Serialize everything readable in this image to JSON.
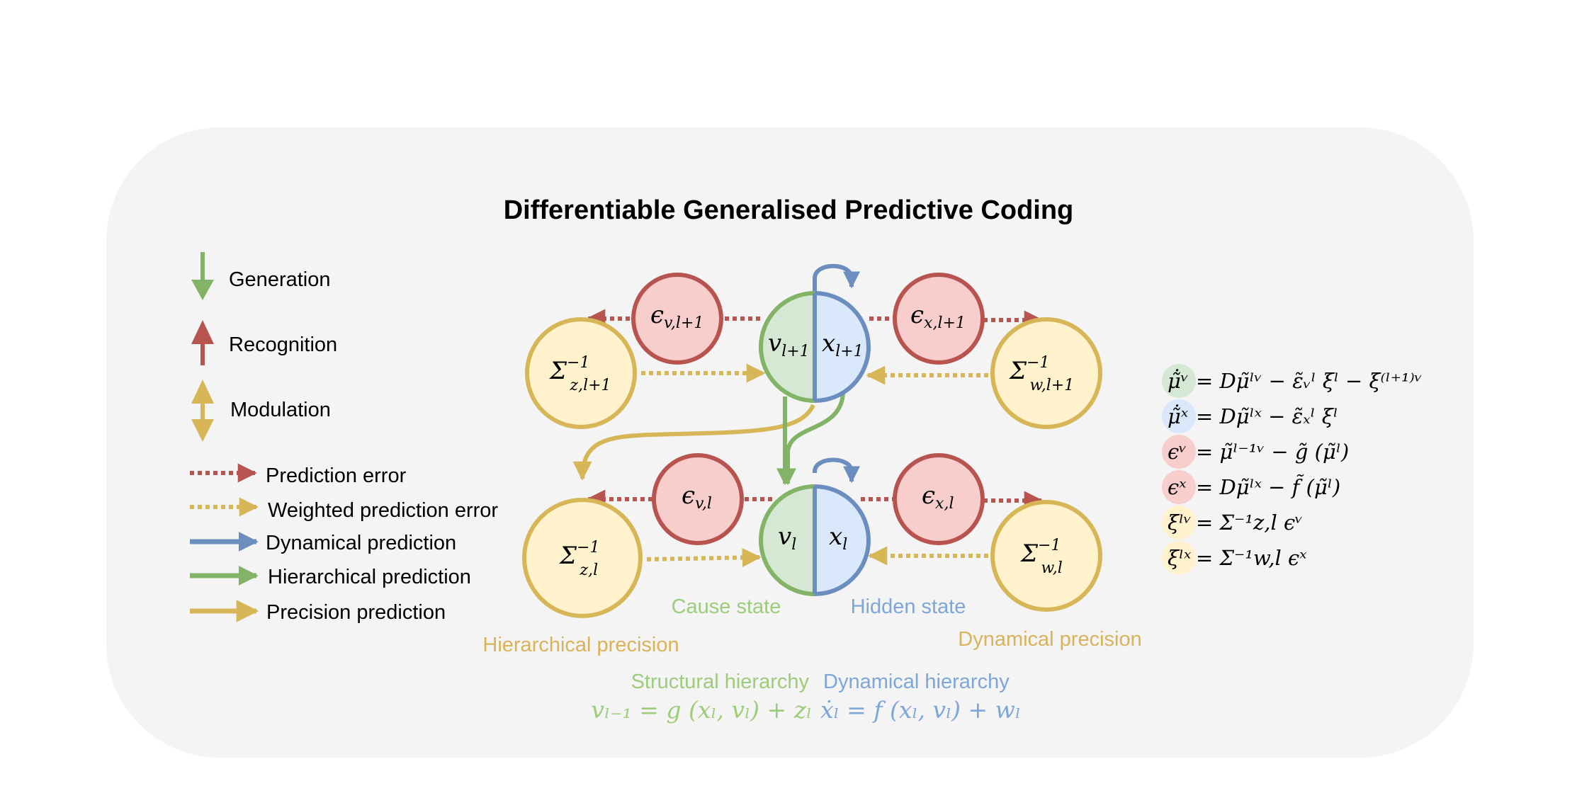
{
  "title": "Differentiable Generalised Predictive Coding",
  "colors": {
    "green": "#82b366",
    "green_fill": "#d5e8d4",
    "blue": "#6c8ebf",
    "blue_fill": "#dae8fc",
    "red": "#b85450",
    "red_fill": "#f8cecc",
    "gold": "#d6b656",
    "gold_fill": "#fff2cc",
    "panel": "#f4f4f4"
  },
  "legend": {
    "generation": "Generation",
    "recognition": "Recognition",
    "modulation": "Modulation",
    "prediction_error": "Prediction error",
    "weighted_prediction_error": "Weighted prediction error",
    "dynamical_prediction": "Dynamical prediction",
    "hierarchical_prediction": "Hierarchical prediction",
    "precision_prediction": "Precision prediction"
  },
  "nodes": {
    "v_upper": "v",
    "v_upper_sub": "l+1",
    "x_upper": "x",
    "x_upper_sub": "l+1",
    "v_lower": "v",
    "v_lower_sub": "l",
    "x_lower": "x",
    "x_lower_sub": "l",
    "eps_v_upper": "ϵ",
    "eps_v_upper_sub": "v,l+1",
    "eps_x_upper": "ϵ",
    "eps_x_upper_sub": "x,l+1",
    "eps_v_lower": "ϵ",
    "eps_v_lower_sub": "v,l",
    "eps_x_lower": "ϵ",
    "eps_x_lower_sub": "x,l",
    "sigma_z_upper": "Σ",
    "sigma_z_upper_sup": "−1",
    "sigma_z_upper_sub": "z,l+1",
    "sigma_w_upper": "Σ",
    "sigma_w_upper_sup": "−1",
    "sigma_w_upper_sub": "w,l+1",
    "sigma_z_lower": "Σ",
    "sigma_z_lower_sup": "−1",
    "sigma_z_lower_sub": "z,l",
    "sigma_w_lower": "Σ",
    "sigma_w_lower_sup": "−1",
    "sigma_w_lower_sub": "w,l"
  },
  "captions": {
    "cause_state": "Cause state",
    "hidden_state": "Hidden state",
    "hierarchical_precision": "Hierarchical precision",
    "dynamical_precision": "Dynamical precision",
    "structural_hierarchy": "Structural hierarchy",
    "dynamical_hierarchy": "Dynamical hierarchy",
    "structural_equation": "vₗ₋₁ = g (xₗ, vₗ) + zₗ",
    "dynamical_equation": "ẋₗ = f (xₗ, vₗ) + wₗ"
  },
  "update_equations": [
    {
      "lhs": "μ̃̇ᵛ",
      "rhs": "= Dμ̃ˡᵛ − ε̃ᵥˡ ξˡ − ξ⁽ˡ⁺¹⁾ᵛ",
      "color": "#d5e8d4"
    },
    {
      "lhs": "μ̃̇ˣ",
      "rhs": "= Dμ̃ˡˣ − ε̃ₓˡ ξˡ",
      "color": "#dae8fc"
    },
    {
      "lhs": "ϵᵛ",
      "rhs": "= μ̃ˡ⁻¹ᵛ − g̃ (μ̃ˡ)",
      "color": "#f8cecc"
    },
    {
      "lhs": "ϵˣ",
      "rhs": "= Dμ̃ˡˣ − f̃ (μ̃ˡ)",
      "color": "#f8cecc"
    },
    {
      "lhs": "ξˡᵛ",
      "rhs": "= Σ⁻¹z,l ϵᵛ",
      "color": "#fff2cc"
    },
    {
      "lhs": "ξˡˣ",
      "rhs": "= Σ⁻¹w,l ϵˣ",
      "color": "#fff2cc"
    }
  ]
}
